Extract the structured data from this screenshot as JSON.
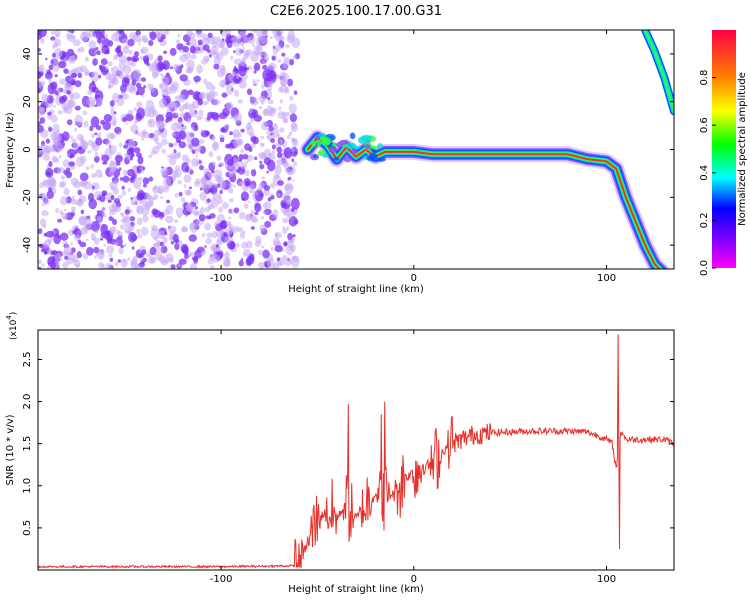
{
  "title": "C2E6.2025.100.17.00.G31",
  "colors": {
    "noise": "#7b2ff7",
    "noise_light": "#c6a8f5",
    "snr_line": "#e8302a",
    "colormap": [
      "#ff00ff",
      "#8000ff",
      "#0000ff",
      "#00ffff",
      "#00ff00",
      "#ffff00",
      "#ff8000",
      "#ff0000"
    ]
  },
  "chart_data": [
    {
      "type": "heatmap",
      "title": "C2E6.2025.100.17.00.G31",
      "xlabel": "Height of straight line (km)",
      "ylabel": "Frequency (Hz)",
      "xlim": [
        -195,
        135
      ],
      "ylim": [
        -50,
        50
      ],
      "x_ticks": [
        -100,
        0,
        100
      ],
      "x_tick_labels": [
        "-100",
        "0",
        "100"
      ],
      "y_ticks": [
        -40,
        -20,
        0,
        20,
        40
      ],
      "y_tick_labels": [
        "-40",
        "-20",
        "0",
        "20",
        "40"
      ],
      "noise_region_x": [
        -195,
        -61
      ],
      "ridge": {
        "x": [
          -55,
          -50,
          -45,
          -40,
          -35,
          -30,
          -25,
          -20,
          -15,
          -10,
          -5,
          0,
          10,
          20,
          40,
          60,
          80,
          90,
          100,
          105,
          110,
          115,
          120,
          125,
          130
        ],
        "y": [
          0,
          5,
          2,
          -4,
          1,
          -3,
          0,
          -3,
          -1,
          -1,
          -1,
          -1,
          -2,
          -2,
          -2,
          -2,
          -2,
          -4,
          -5,
          -8,
          -20,
          -30,
          -40,
          -48,
          -52
        ]
      },
      "upper_branch": {
        "x": [
          120,
          125,
          130,
          135
        ],
        "y": [
          50,
          41,
          30,
          16
        ]
      },
      "colorbar": {
        "label": "Normalized spectral amplitude",
        "range": [
          0,
          1
        ],
        "ticks": [
          0.0,
          0.2,
          0.4,
          0.6,
          0.8
        ],
        "tick_labels": [
          "0.0",
          "0.2",
          "0.4",
          "0.6",
          "0.8"
        ]
      },
      "grid": false
    },
    {
      "type": "line",
      "xlabel": "Height of straight line (km)",
      "ylabel": "SNR (10 * v/v)",
      "y_scale_label": "(x10",
      "y_scale_exponent": "4",
      "y_unit_scale": 10000,
      "xlim": [
        -195,
        135
      ],
      "ylim": [
        0,
        2.85
      ],
      "x_ticks": [
        -100,
        0,
        100
      ],
      "x_tick_labels": [
        "-100",
        "0",
        "100"
      ],
      "y_ticks": [
        0.5,
        1.0,
        1.5,
        2.0,
        2.5
      ],
      "y_tick_labels": [
        "0.5",
        "1.0",
        "1.5",
        "2.0",
        "2.5"
      ],
      "series": [
        {
          "x": [
            -195,
            -150,
            -100,
            -60,
            -50,
            -45,
            -40,
            -35,
            -30,
            -25,
            -20,
            -15,
            -10,
            -5,
            0,
            5,
            10,
            15,
            20,
            30,
            40,
            50,
            60,
            70,
            80,
            90,
            95,
            100,
            103,
            105,
            106,
            107,
            108,
            110,
            120,
            130,
            135
          ],
          "y": [
            0.04,
            0.04,
            0.04,
            0.05,
            0.6,
            0.7,
            0.6,
            0.8,
            0.6,
            0.8,
            0.9,
            0.9,
            0.9,
            1.1,
            1.15,
            1.25,
            1.25,
            1.4,
            1.5,
            1.6,
            1.63,
            1.64,
            1.65,
            1.65,
            1.65,
            1.64,
            1.6,
            1.55,
            1.5,
            1.2,
            1.4,
            1.6,
            1.65,
            1.55,
            1.55,
            1.55,
            1.5
          ],
          "spikes": [
            {
              "x": -34,
              "y": 1.97
            },
            {
              "x": -15,
              "y": 2.0
            },
            {
              "x": -17,
              "y": 1.85
            },
            {
              "x": 13,
              "y": 1.55
            },
            {
              "x": 106,
              "y": 2.8
            },
            {
              "x": 106.8,
              "y": 0.25
            }
          ]
        }
      ],
      "grid": false
    }
  ]
}
